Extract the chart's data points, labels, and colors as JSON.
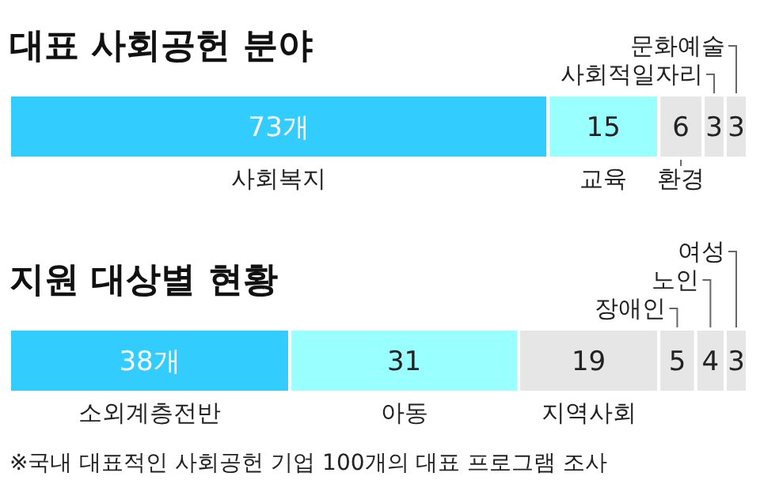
{
  "chart_data": [
    {
      "type": "bar",
      "orientation": "horizontal",
      "stacked": true,
      "title": "대표 사회공헌 분야",
      "categories": [
        null
      ],
      "xlim": [
        0,
        100
      ],
      "tick_labels": false,
      "series": [
        {
          "name": "사회복지",
          "color": "#33ccff",
          "values": [
            73
          ],
          "value_labels": [
            "73개"
          ]
        },
        {
          "name": "교육",
          "color": "#99ffff",
          "values": [
            15
          ],
          "value_labels": [
            "15"
          ]
        },
        {
          "name": "환경",
          "color": "#e6e6e6",
          "values": [
            6
          ],
          "value_labels": [
            "6"
          ]
        },
        {
          "name": "사회적일자리",
          "color": "#e6e6e6",
          "values": [
            3
          ],
          "value_labels": [
            "3"
          ]
        },
        {
          "name": "문화예술",
          "color": "#e6e6e6",
          "values": [
            3
          ],
          "value_labels": [
            "3"
          ]
        }
      ]
    },
    {
      "type": "bar",
      "orientation": "horizontal",
      "stacked": true,
      "title": "지원 대상별 현황",
      "categories": [
        null
      ],
      "xlim": [
        0,
        100
      ],
      "tick_labels": false,
      "series": [
        {
          "name": "소외계층전반",
          "color": "#33ccff",
          "values": [
            38
          ],
          "value_labels": [
            "38개"
          ]
        },
        {
          "name": "아동",
          "color": "#99ffff",
          "values": [
            31
          ],
          "value_labels": [
            "31"
          ]
        },
        {
          "name": "지역사회",
          "color": "#e6e6e6",
          "values": [
            19
          ],
          "value_labels": [
            "19"
          ]
        },
        {
          "name": "장애인",
          "color": "#e6e6e6",
          "values": [
            5
          ],
          "value_labels": [
            "5"
          ]
        },
        {
          "name": "노인",
          "color": "#e6e6e6",
          "values": [
            4
          ],
          "value_labels": [
            "4"
          ]
        },
        {
          "name": "여성",
          "color": "#e6e6e6",
          "values": [
            3
          ],
          "value_labels": [
            "3"
          ]
        }
      ],
      "annotations": [
        "※국내 대표적인 사회공헌 기업 100개의 대표 프로그램 조사"
      ]
    }
  ]
}
